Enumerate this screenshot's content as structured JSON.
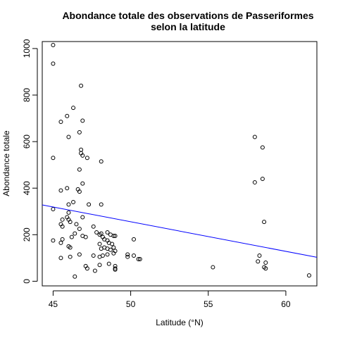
{
  "chart_data": {
    "type": "scatter",
    "title": "Abondance totale des observations de Passeriformes",
    "subtitle": "selon la latitude",
    "xlabel": "Latitude (°N)",
    "ylabel": "Abondance totale",
    "xlim": [
      44.3,
      62.0
    ],
    "ylim": [
      -20,
      1030
    ],
    "xticks": [
      45,
      50,
      55,
      60
    ],
    "yticks": [
      0,
      200,
      400,
      600,
      800,
      1000
    ],
    "grid": false,
    "legend": "none",
    "point_color": "#000000",
    "line_color": "#0000ff",
    "regression_line": {
      "x": [
        44.3,
        62.0
      ],
      "y": [
        328,
        103
      ]
    },
    "points": [
      [
        45.0,
        1015
      ],
      [
        45.0,
        935
      ],
      [
        45.0,
        530
      ],
      [
        45.0,
        310
      ],
      [
        45.0,
        175
      ],
      [
        45.5,
        685
      ],
      [
        45.9,
        710
      ],
      [
        46.3,
        745
      ],
      [
        46.8,
        840
      ],
      [
        46.9,
        690
      ],
      [
        46.7,
        640
      ],
      [
        46.8,
        565
      ],
      [
        46.8,
        550
      ],
      [
        46.9,
        540
      ],
      [
        47.2,
        530
      ],
      [
        46.0,
        620
      ],
      [
        48.1,
        515
      ],
      [
        46.7,
        480
      ],
      [
        45.5,
        390
      ],
      [
        45.9,
        400
      ],
      [
        46.6,
        395
      ],
      [
        46.7,
        385
      ],
      [
        46.9,
        420
      ],
      [
        46.3,
        340
      ],
      [
        46.0,
        330
      ],
      [
        47.3,
        330
      ],
      [
        48.1,
        330
      ],
      [
        46.0,
        295
      ],
      [
        45.6,
        265
      ],
      [
        45.9,
        275
      ],
      [
        45.5,
        245
      ],
      [
        46.5,
        245
      ],
      [
        45.6,
        235
      ],
      [
        46.0,
        265
      ],
      [
        46.9,
        275
      ],
      [
        46.1,
        255
      ],
      [
        46.7,
        225
      ],
      [
        46.4,
        205
      ],
      [
        46.9,
        195
      ],
      [
        47.6,
        235
      ],
      [
        47.8,
        210
      ],
      [
        48.0,
        200
      ],
      [
        48.1,
        205
      ],
      [
        48.2,
        190
      ],
      [
        48.5,
        210
      ],
      [
        48.7,
        200
      ],
      [
        48.9,
        195
      ],
      [
        49.0,
        195
      ],
      [
        48.3,
        180
      ],
      [
        48.5,
        175
      ],
      [
        48.6,
        165
      ],
      [
        48.8,
        160
      ],
      [
        48.0,
        160
      ],
      [
        48.1,
        140
      ],
      [
        48.3,
        145
      ],
      [
        48.5,
        140
      ],
      [
        48.7,
        135
      ],
      [
        48.9,
        145
      ],
      [
        49.0,
        130
      ],
      [
        48.9,
        120
      ],
      [
        48.5,
        115
      ],
      [
        48.2,
        110
      ],
      [
        48.0,
        105
      ],
      [
        47.6,
        110
      ],
      [
        47.1,
        190
      ],
      [
        46.2,
        190
      ],
      [
        46.0,
        150
      ],
      [
        46.1,
        145
      ],
      [
        45.6,
        180
      ],
      [
        45.5,
        165
      ],
      [
        45.5,
        100
      ],
      [
        46.1,
        105
      ],
      [
        46.7,
        115
      ],
      [
        47.1,
        65
      ],
      [
        47.2,
        55
      ],
      [
        47.7,
        45
      ],
      [
        48.0,
        70
      ],
      [
        48.6,
        75
      ],
      [
        49.0,
        65
      ],
      [
        49.0,
        55
      ],
      [
        49.0,
        50
      ],
      [
        46.4,
        20
      ],
      [
        49.8,
        115
      ],
      [
        49.8,
        105
      ],
      [
        50.2,
        180
      ],
      [
        50.2,
        110
      ],
      [
        50.5,
        95
      ],
      [
        50.6,
        95
      ],
      [
        55.3,
        60
      ],
      [
        58.0,
        620
      ],
      [
        58.5,
        575
      ],
      [
        58.0,
        425
      ],
      [
        58.5,
        440
      ],
      [
        58.6,
        255
      ],
      [
        58.3,
        110
      ],
      [
        58.2,
        85
      ],
      [
        58.7,
        80
      ],
      [
        58.6,
        60
      ],
      [
        58.7,
        55
      ],
      [
        61.5,
        25
      ]
    ]
  }
}
